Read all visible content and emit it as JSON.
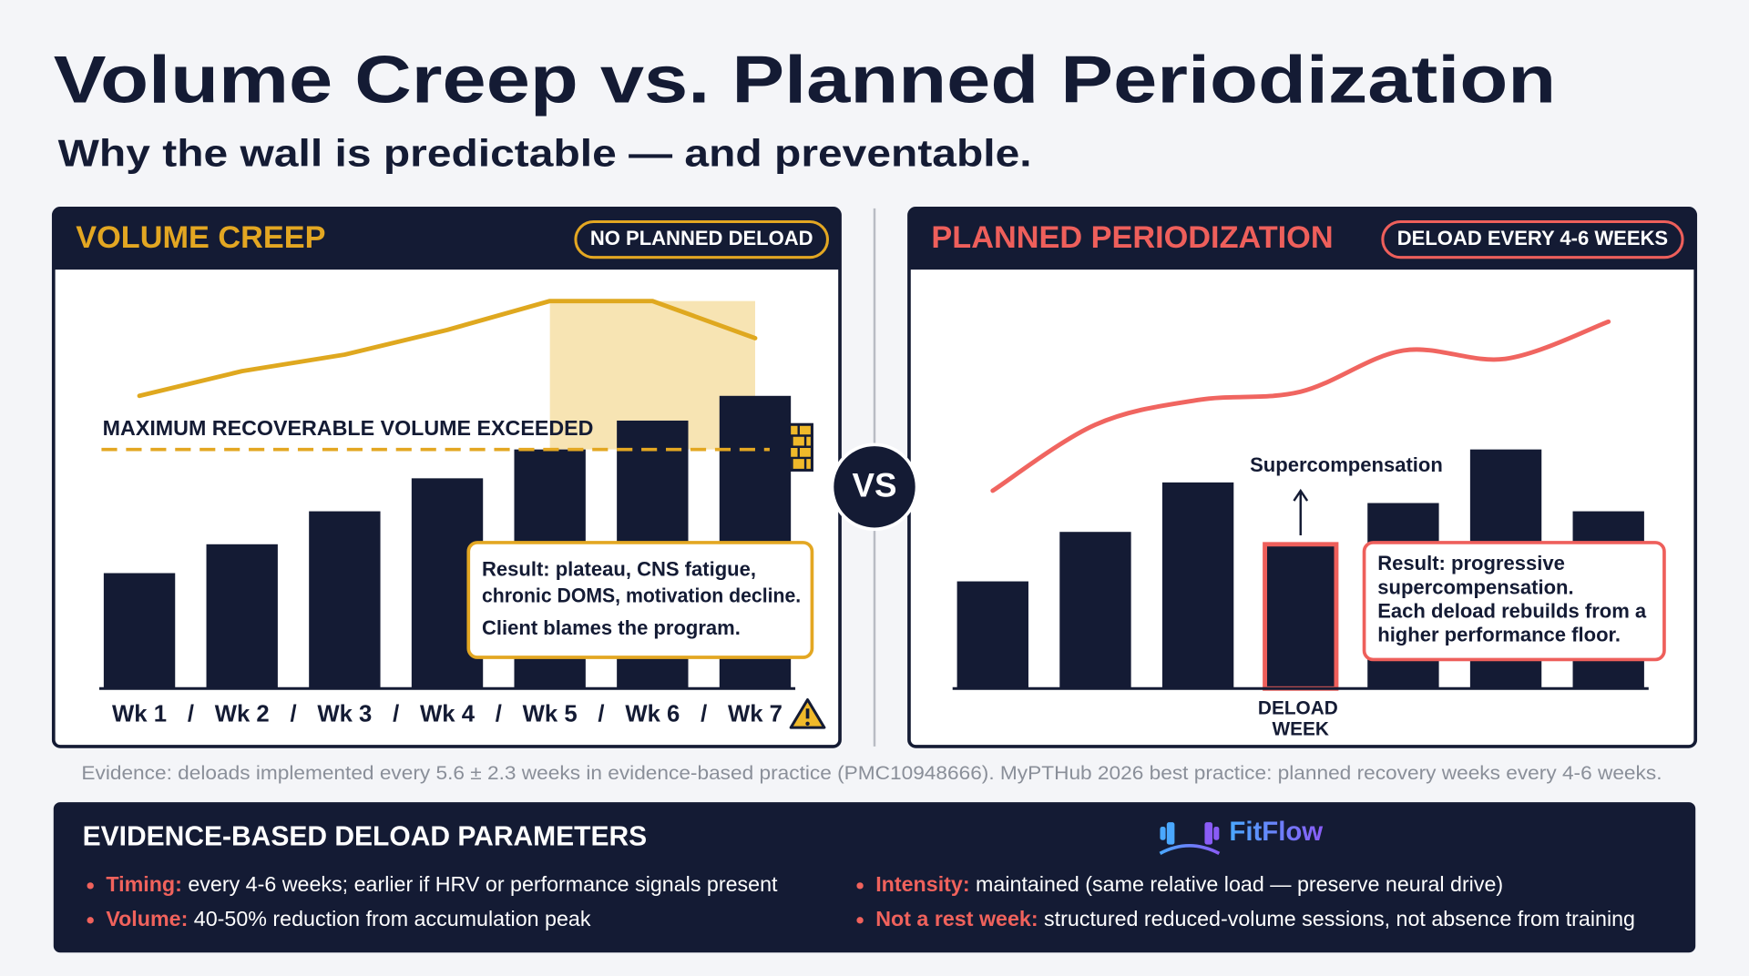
{
  "title": "Volume Creep vs. Planned Periodization",
  "subtitle": "Why the wall is predictable — and preventable.",
  "vs": "VS",
  "chart_data": [
    {
      "type": "bar",
      "title": "VOLUME CREEP",
      "badge": "NO PLANNED DELOAD",
      "accent": "#e3a722",
      "categories": [
        "Wk 1",
        "Wk 2",
        "Wk 3",
        "Wk 4",
        "Wk 5",
        "Wk 6",
        "Wk 7"
      ],
      "separator": "/",
      "ylim": [
        0,
        100
      ],
      "series": [
        {
          "kind": "bar",
          "color": "#141b34",
          "values": [
            28,
            35,
            43,
            51,
            58,
            65,
            71
          ]
        },
        {
          "kind": "line",
          "color": "#dfa81f",
          "values": [
            71,
            77,
            81,
            87,
            94,
            94,
            85
          ]
        }
      ],
      "threshold": {
        "value": 58,
        "label": "MAXIMUM RECOVERABLE VOLUME EXCEEDED"
      },
      "callout": [
        [
          "Result: plateau, CNS fatigue,",
          "chronic DOMS, motivation decline."
        ],
        [
          "Client blames the program."
        ]
      ]
    },
    {
      "type": "bar",
      "title": "PLANNED PERIODIZATION",
      "badge": "DELOAD EVERY 4-6 WEEKS",
      "accent": "#ee5f5b",
      "categories": [
        null,
        null,
        null,
        "DELOAD WEEK",
        null,
        null,
        null
      ],
      "ylim": [
        0,
        100
      ],
      "smooth": true,
      "series": [
        {
          "kind": "bar",
          "color": "#141b34",
          "values": [
            26,
            38,
            50,
            35,
            45,
            58,
            43
          ]
        },
        {
          "kind": "line",
          "color": "#f06560",
          "values": [
            48,
            64,
            70,
            72,
            82,
            80,
            89
          ]
        }
      ],
      "annotation": "Supercompensation",
      "callout": [
        [
          "Result: progressive",
          "supercompensation.",
          "Each deload rebuilds from a",
          "higher performance floor."
        ]
      ]
    }
  ],
  "evidence_note": "Evidence: deloads implemented every 5.6 ± 2.3 weeks in evidence-based practice (PMC10948666). MyPTHub 2026 best practice: planned recovery weeks every 4-6 weeks.",
  "parameters": {
    "title": "EVIDENCE-BASED DELOAD PARAMETERS",
    "brand": "FitFlow",
    "items": [
      {
        "label": "Timing:",
        "text": " every 4-6 weeks; earlier if HRV or performance signals present"
      },
      {
        "label": "Volume:",
        "text": " 40-50% reduction from accumulation peak"
      },
      {
        "label": "Intensity:",
        "text": " maintained (same relative load — preserve neural drive)"
      },
      {
        "label": "Not a rest week:",
        "text": " structured reduced-volume sessions, not absence from training"
      }
    ]
  }
}
